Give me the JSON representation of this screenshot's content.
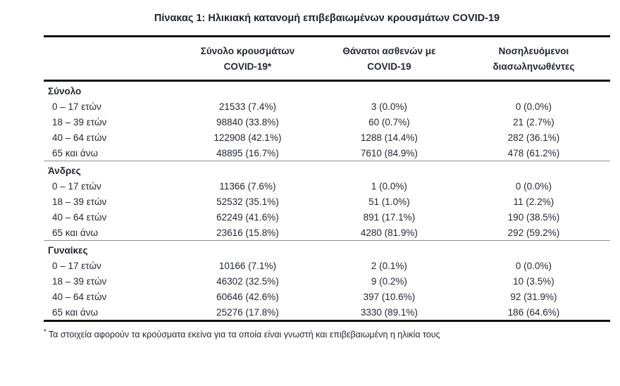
{
  "title": "Πίνακας 1: Ηλικιακή κατανομή επιβεβαιωμένων κρουσμάτων COVID-19",
  "table": {
    "columns": {
      "cases": "Σύνολο κρουσμάτων\nCOVID-19*",
      "deaths": "Θάνατοι ασθενών με\nCOVID-19",
      "intubated": "Νοσηλευόμενοι\nδιασωληνωθέντες"
    },
    "sections": [
      {
        "name": "Σύνολο",
        "rows": [
          {
            "label": "0 – 17 ετών",
            "cases": "21533 (7.4%)",
            "deaths": "3 (0.0%)",
            "intubated": "0 (0.0%)"
          },
          {
            "label": "18 – 39 ετών",
            "cases": "98840 (33.8%)",
            "deaths": "60 (0.7%)",
            "intubated": "21 (2.7%)"
          },
          {
            "label": "40 – 64 ετών",
            "cases": "122908 (42.1%)",
            "deaths": "1288 (14.4%)",
            "intubated": "282 (36.1%)"
          },
          {
            "label": "65 και άνω",
            "cases": "48895 (16.7%)",
            "deaths": "7610 (84.9%)",
            "intubated": "478 (61.2%)"
          }
        ]
      },
      {
        "name": "Άνδρες",
        "rows": [
          {
            "label": "0 – 17 ετών",
            "cases": "11366 (7.6%)",
            "deaths": "1 (0.0%)",
            "intubated": "0 (0.0%)"
          },
          {
            "label": "18 – 39 ετών",
            "cases": "52532 (35.1%)",
            "deaths": "51 (1.0%)",
            "intubated": "11 (2.2%)"
          },
          {
            "label": "40 – 64 ετών",
            "cases": "62249 (41.6%)",
            "deaths": "891 (17.1%)",
            "intubated": "190 (38.5%)"
          },
          {
            "label": "65 και άνω",
            "cases": "23616 (15.8%)",
            "deaths": "4280 (81.9%)",
            "intubated": "292 (59.2%)"
          }
        ]
      },
      {
        "name": "Γυναίκες",
        "rows": [
          {
            "label": "0 – 17 ετών",
            "cases": "10166 (7.1%)",
            "deaths": "2 (0.1%)",
            "intubated": "0 (0.0%)"
          },
          {
            "label": "18 – 39 ετών",
            "cases": "46302 (32.5%)",
            "deaths": "9 (0.2%)",
            "intubated": "10 (3.5%)"
          },
          {
            "label": "40 – 64 ετών",
            "cases": "60646 (42.6%)",
            "deaths": "397 (10.6%)",
            "intubated": "92 (31.9%)"
          },
          {
            "label": "65 και άνω",
            "cases": "25276 (17.8%)",
            "deaths": "3330 (89.1%)",
            "intubated": "186 (64.6%)"
          }
        ]
      }
    ]
  },
  "footnote": {
    "marker": "*",
    "text": "Τα στοιχεία αφορούν τα κρούσματα εκείνα για τα οποία είναι γνωστή και επιβεβαιωμένη η ηλικία τους"
  }
}
